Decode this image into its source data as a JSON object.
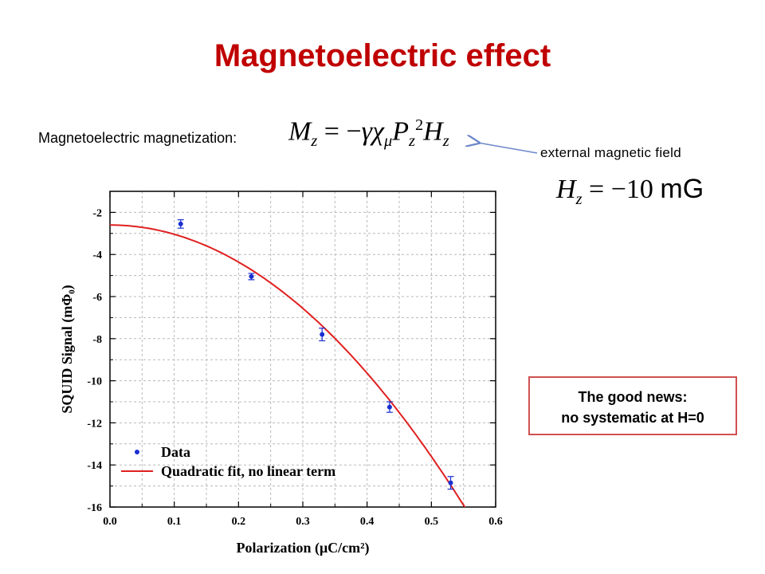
{
  "slide": {
    "title": "Magnetoelectric effect",
    "mm_label": "Magnetoelectric magnetization:",
    "external_field_label": "external magnetic field",
    "field_unit": "mG",
    "field_value": "−10",
    "news_line1": "The good news:",
    "news_line2": "no systematic at H=0",
    "colors": {
      "title": "#c00000",
      "data": "#1a2fd0",
      "fit": "#e02020",
      "box_border": "#d05050"
    }
  },
  "chart_data": {
    "type": "scatter",
    "title": "",
    "xlabel": "Polarization (μC/cm²)",
    "ylabel": "SQUID Signal (mΦ₀)",
    "xlim": [
      0.0,
      0.6
    ],
    "ylim": [
      -16,
      -1
    ],
    "xticks": [
      "0.0",
      "0.1",
      "0.2",
      "0.3",
      "0.4",
      "0.5",
      "0.6"
    ],
    "yticks": [
      "-2",
      "-4",
      "-6",
      "-8",
      "-10",
      "-12",
      "-14",
      "-16"
    ],
    "grid": true,
    "legend_position": "bottom-left",
    "series": [
      {
        "name": "Data",
        "kind": "points",
        "x": [
          0.11,
          0.22,
          0.33,
          0.435,
          0.53
        ],
        "y": [
          -2.55,
          -5.05,
          -7.8,
          -11.25,
          -14.85
        ],
        "yerr": [
          0.2,
          0.15,
          0.3,
          0.25,
          0.3
        ]
      },
      {
        "name": "Quadratic fit, no linear term",
        "kind": "curve",
        "model": {
          "a": -2.6,
          "c": -44.0
        }
      }
    ]
  }
}
